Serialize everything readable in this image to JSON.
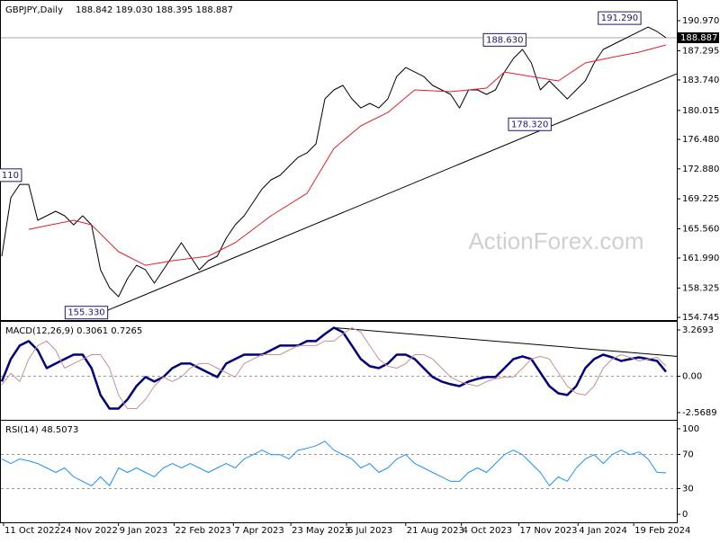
{
  "chart_data": [
    {
      "type": "ohlc",
      "title": "GBPJPY,Daily",
      "ohlc": "188.842 189.030 188.395 188.887",
      "watermark": "ActionForex.com",
      "xlim": [
        0,
        376
      ],
      "ylim": [
        154.53,
        192.95
      ],
      "grid": false,
      "yticks": [
        {
          "value": 190.97,
          "label": "190.970"
        },
        187.295,
        {
          "value": 183.74,
          "label": "183.740"
        },
        180.015,
        {
          "value": 176.48,
          "label": "176.480"
        },
        {
          "value": 172.88,
          "label": "172.880"
        },
        169.225,
        {
          "value": 165.56,
          "label": "165.560"
        },
        {
          "value": 161.99,
          "label": "161.990"
        },
        158.325,
        154.745
      ],
      "last_price": 188.887,
      "series": [
        {
          "name": "GBPJPY",
          "color": "#000000",
          "line_width": 1,
          "x": [
            0,
            5,
            10,
            15,
            20,
            25,
            30,
            35,
            40,
            45,
            50,
            55,
            60,
            65,
            70,
            75,
            80,
            85,
            90,
            95,
            100,
            105,
            110,
            115,
            120,
            125,
            130,
            135,
            140,
            145,
            150,
            155,
            160,
            165,
            170,
            175,
            180,
            185,
            190,
            195,
            200,
            205,
            210,
            215,
            220,
            225,
            230,
            235,
            240,
            245,
            250,
            255,
            260,
            265,
            270,
            275,
            280,
            285,
            290,
            295,
            300,
            305,
            310,
            315,
            320,
            325,
            330,
            335,
            340,
            345,
            350,
            355,
            360,
            365,
            370
          ],
          "values": [
            162.21,
            169.35,
            170.99,
            170.99,
            166.6,
            167.15,
            167.7,
            167.15,
            166.05,
            167.15,
            166.05,
            160.56,
            158.37,
            157.27,
            159.47,
            161.11,
            160.56,
            158.92,
            160.56,
            162.21,
            163.86,
            162.21,
            160.56,
            161.66,
            162.21,
            164.41,
            166.05,
            167.15,
            168.8,
            170.44,
            171.54,
            172.09,
            173.19,
            174.28,
            174.83,
            175.93,
            181.42,
            182.52,
            183.07,
            181.42,
            180.32,
            180.87,
            180.32,
            181.42,
            184.16,
            185.26,
            184.71,
            184.16,
            183.07,
            182.52,
            181.97,
            180.32,
            182.52,
            182.52,
            181.97,
            182.52,
            184.71,
            186.36,
            187.46,
            185.81,
            182.52,
            183.62,
            182.52,
            181.42,
            182.52,
            183.62,
            185.81,
            187.46,
            188.01,
            188.56,
            189.1,
            189.65,
            190.2,
            189.65,
            188.887
          ]
        },
        {
          "name": "MA",
          "color": "#e0202a",
          "line_width": 1,
          "x": [
            15,
            40,
            50,
            65,
            80,
            95,
            115,
            130,
            150,
            170,
            185,
            200,
            215,
            230,
            250,
            270,
            280,
            295,
            310,
            325,
            340,
            355,
            370
          ],
          "values": [
            165.5,
            166.6,
            166.05,
            162.76,
            161.11,
            161.66,
            162.21,
            163.86,
            167.15,
            169.89,
            175.38,
            178.13,
            179.77,
            182.52,
            182.3,
            182.74,
            184.71,
            184.16,
            183.62,
            185.81,
            186.5,
            187.13,
            188.01
          ]
        }
      ],
      "trendline": {
        "x": [
          59,
          376
        ],
        "values": [
          155.62,
          184.49
        ]
      },
      "annotations": [
        {
          "label": "110",
          "value": 172.11,
          "x": 11
        },
        {
          "label": "155.330",
          "value": 155.33,
          "x": 59
        },
        {
          "label": "188.630",
          "value": 188.63,
          "x": 292
        },
        {
          "label": "178.320",
          "value": 178.32,
          "x": 306
        },
        {
          "label": "191.290",
          "value": 191.29,
          "x": 356
        }
      ]
    },
    {
      "type": "line",
      "title": "MACD(12,26,9) 0.3061 0.7265",
      "xlim": [
        0,
        376
      ],
      "ylim": [
        -3.02,
        3.84
      ],
      "grid": true,
      "yticks": [
        3.2693,
        {
          "value": 0,
          "label": "0.00"
        },
        -2.5689
      ],
      "series": [
        {
          "name": "MACD",
          "color": "#000080",
          "line_width": 2.5,
          "x": [
            0,
            5,
            10,
            15,
            20,
            25,
            30,
            35,
            40,
            45,
            50,
            55,
            60,
            65,
            70,
            75,
            80,
            85,
            90,
            95,
            100,
            105,
            110,
            115,
            120,
            125,
            130,
            135,
            140,
            145,
            150,
            155,
            160,
            165,
            170,
            175,
            180,
            185,
            190,
            195,
            200,
            205,
            210,
            215,
            220,
            225,
            230,
            235,
            240,
            245,
            250,
            255,
            260,
            265,
            270,
            275,
            280,
            285,
            290,
            295,
            300,
            305,
            310,
            315,
            320,
            325,
            330,
            335,
            340,
            345,
            350,
            355,
            360,
            365,
            370
          ],
          "values": [
            -0.38,
            1.21,
            2.16,
            2.48,
            1.84,
            0.57,
            0.89,
            1.21,
            1.52,
            1.52,
            0.57,
            -1.33,
            -2.29,
            -2.29,
            -1.65,
            -0.7,
            -0.06,
            -0.38,
            -0.06,
            0.57,
            0.89,
            0.89,
            0.57,
            0.25,
            -0.06,
            0.89,
            1.21,
            1.52,
            1.52,
            1.52,
            1.84,
            2.16,
            2.16,
            2.16,
            2.48,
            2.48,
            2.98,
            3.43,
            3.11,
            2.16,
            1.21,
            0.7,
            0.57,
            0.89,
            1.52,
            1.52,
            1.21,
            0.57,
            -0.06,
            -0.38,
            -0.57,
            -0.7,
            -0.38,
            -0.19,
            -0.06,
            -0.06,
            0.57,
            1.21,
            1.4,
            1.21,
            0.25,
            -0.7,
            -1.21,
            -1.33,
            -0.7,
            0.57,
            1.21,
            1.52,
            1.33,
            1.08,
            1.21,
            1.33,
            1.21,
            1.08,
            0.3061
          ]
        },
        {
          "name": "Signal",
          "color": "#c89090",
          "line_width": 1,
          "x": [
            0,
            5,
            10,
            15,
            20,
            25,
            30,
            35,
            40,
            45,
            50,
            55,
            60,
            65,
            70,
            75,
            80,
            85,
            90,
            95,
            100,
            105,
            110,
            115,
            120,
            125,
            130,
            135,
            140,
            145,
            150,
            155,
            160,
            165,
            170,
            175,
            180,
            185,
            190,
            195,
            200,
            205,
            210,
            215,
            220,
            225,
            230,
            235,
            240,
            245,
            250,
            255,
            260,
            265,
            270,
            275,
            280,
            285,
            290,
            295,
            300,
            305,
            310,
            315,
            320,
            325,
            330,
            335,
            340,
            345,
            350,
            355,
            360,
            365,
            370
          ],
          "values": [
            -0.6,
            0.2,
            -0.38,
            1.21,
            2.16,
            2.48,
            1.84,
            0.57,
            0.89,
            1.21,
            1.52,
            1.52,
            0.57,
            -1.33,
            -2.29,
            -2.29,
            -1.65,
            -0.7,
            -0.06,
            -0.38,
            -0.06,
            0.57,
            0.89,
            0.89,
            0.57,
            0.25,
            -0.06,
            0.89,
            1.21,
            1.52,
            1.52,
            1.52,
            1.84,
            2.16,
            2.16,
            2.16,
            2.48,
            2.48,
            2.98,
            3.43,
            3.11,
            2.16,
            1.21,
            0.7,
            0.57,
            0.89,
            1.52,
            1.52,
            1.21,
            0.57,
            -0.06,
            -0.38,
            -0.57,
            -0.7,
            -0.38,
            -0.19,
            -0.06,
            -0.06,
            0.57,
            1.21,
            1.4,
            1.21,
            0.25,
            -0.7,
            -1.21,
            -1.33,
            -0.7,
            0.57,
            1.21,
            1.52,
            1.33,
            1.08,
            1.21,
            1.33,
            0.7265
          ]
        }
      ],
      "trendline": {
        "x": [
          185,
          376
        ],
        "values": [
          3.43,
          1.4
        ]
      }
    },
    {
      "type": "line",
      "title": "RSI(14) 48.5073",
      "xlim": [
        0,
        376
      ],
      "ylim": [
        -8.3,
        108.3
      ],
      "grid": true,
      "yticks": [
        100,
        70,
        30,
        0
      ],
      "xticks": [
        {
          "value": 1,
          "label": "11 Oct 2022"
        },
        {
          "value": 32,
          "label": "24 Nov 2022"
        },
        {
          "value": 65,
          "label": "9 Jan 2023"
        },
        {
          "value": 96,
          "label": "22 Feb 2023"
        },
        {
          "value": 129,
          "label": "7 Apr 2023"
        },
        {
          "value": 161,
          "label": "23 May 2023"
        },
        {
          "value": 192,
          "label": "6 Jul 2023"
        },
        {
          "value": 225,
          "label": "21 Aug 2023"
        },
        {
          "value": 256,
          "label": "4 Oct 2023"
        },
        {
          "value": 288,
          "label": "17 Nov 2023"
        },
        {
          "value": 321,
          "label": "4 Jan 2024"
        },
        {
          "value": 352,
          "label": "19 Feb 2024"
        }
      ],
      "series": [
        {
          "name": "RSI",
          "color": "#1e90ff",
          "line_width": 1,
          "x": [
            0,
            5,
            10,
            15,
            20,
            25,
            30,
            35,
            40,
            45,
            50,
            55,
            60,
            65,
            70,
            75,
            80,
            85,
            90,
            95,
            100,
            105,
            110,
            115,
            120,
            125,
            130,
            135,
            140,
            145,
            150,
            155,
            160,
            165,
            170,
            175,
            180,
            185,
            190,
            195,
            200,
            205,
            210,
            215,
            220,
            225,
            230,
            235,
            240,
            245,
            250,
            255,
            260,
            265,
            270,
            275,
            280,
            285,
            290,
            295,
            300,
            305,
            310,
            315,
            320,
            325,
            330,
            335,
            340,
            345,
            350,
            355,
            360,
            365,
            370
          ],
          "values": [
            64.6,
            59.4,
            64.6,
            62.5,
            59.4,
            54.2,
            49.0,
            54.2,
            43.8,
            38.5,
            33.3,
            43.8,
            33.3,
            54.2,
            49.0,
            54.2,
            49.0,
            43.8,
            54.2,
            59.4,
            54.2,
            59.4,
            54.2,
            49.0,
            54.2,
            59.4,
            54.2,
            64.6,
            69.8,
            75.0,
            69.8,
            69.8,
            64.6,
            75.0,
            77.1,
            80.2,
            85.4,
            75.0,
            69.8,
            64.6,
            54.2,
            59.4,
            49.0,
            54.2,
            64.6,
            69.8,
            59.4,
            54.2,
            49.0,
            43.8,
            38.5,
            38.5,
            49.0,
            54.2,
            49.0,
            59.4,
            69.8,
            75.0,
            69.8,
            59.4,
            49.0,
            33.3,
            43.8,
            38.5,
            54.2,
            64.6,
            69.8,
            59.4,
            69.8,
            75.0,
            69.8,
            72.9,
            64.6,
            49.0,
            48.5073
          ]
        }
      ]
    }
  ]
}
